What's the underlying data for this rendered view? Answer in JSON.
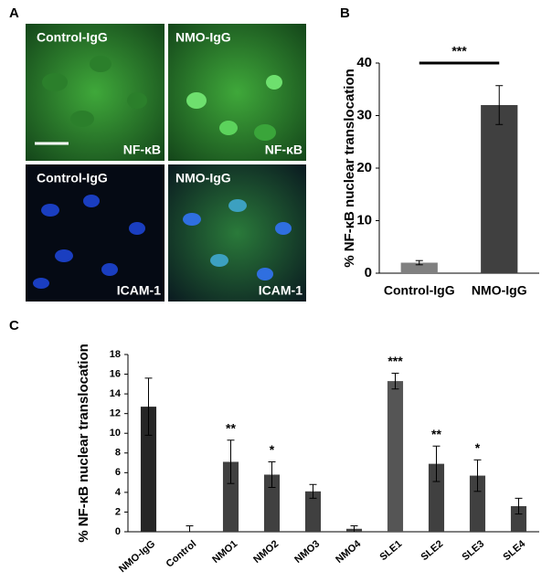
{
  "panel_labels": [
    "A",
    "B",
    "C"
  ],
  "panel_a": {
    "images": [
      {
        "label": "Control-IgG",
        "stain": "NF-κB"
      },
      {
        "label": "NMO-IgG",
        "stain": "NF-κB"
      },
      {
        "label": "Control-IgG",
        "stain": "ICAM-1"
      },
      {
        "label": "NMO-IgG",
        "stain": "ICAM-1"
      }
    ]
  },
  "chart_data": [
    {
      "type": "bar",
      "ylabel": "% NF-κB nuclear translocation",
      "categories": [
        "Control-IgG",
        "NMO-IgG"
      ],
      "values": [
        2,
        32
      ],
      "errors": [
        0.4,
        3.7
      ],
      "colors": [
        "#808080",
        "#404040"
      ],
      "significance": "***",
      "ylim": [
        0,
        40
      ],
      "yticks": [
        0,
        10,
        20,
        30,
        40
      ]
    },
    {
      "type": "bar",
      "ylabel": "% NF-κB nuclear translocation",
      "categories": [
        "NMO-IgG",
        "Control",
        "NMO1",
        "NMO2",
        "NMO3",
        "NMO4",
        "SLE1",
        "SLE2",
        "SLE3",
        "SLE4"
      ],
      "values": [
        12.7,
        0,
        7.1,
        5.8,
        4.1,
        0.3,
        15.3,
        6.9,
        5.7,
        2.6
      ],
      "errors": [
        2.9,
        0.6,
        2.2,
        1.3,
        0.7,
        0.3,
        0.8,
        1.8,
        1.6,
        0.8
      ],
      "annotations": [
        null,
        null,
        "**",
        "*",
        null,
        null,
        "***",
        "**",
        "*",
        null
      ],
      "colors": [
        "#262626",
        "#404040",
        "#404040",
        "#404040",
        "#404040",
        "#404040",
        "#555555",
        "#404040",
        "#404040",
        "#404040"
      ],
      "ylim": [
        0,
        18
      ],
      "yticks": [
        0,
        2,
        4,
        6,
        8,
        10,
        12,
        14,
        16,
        18
      ]
    }
  ]
}
